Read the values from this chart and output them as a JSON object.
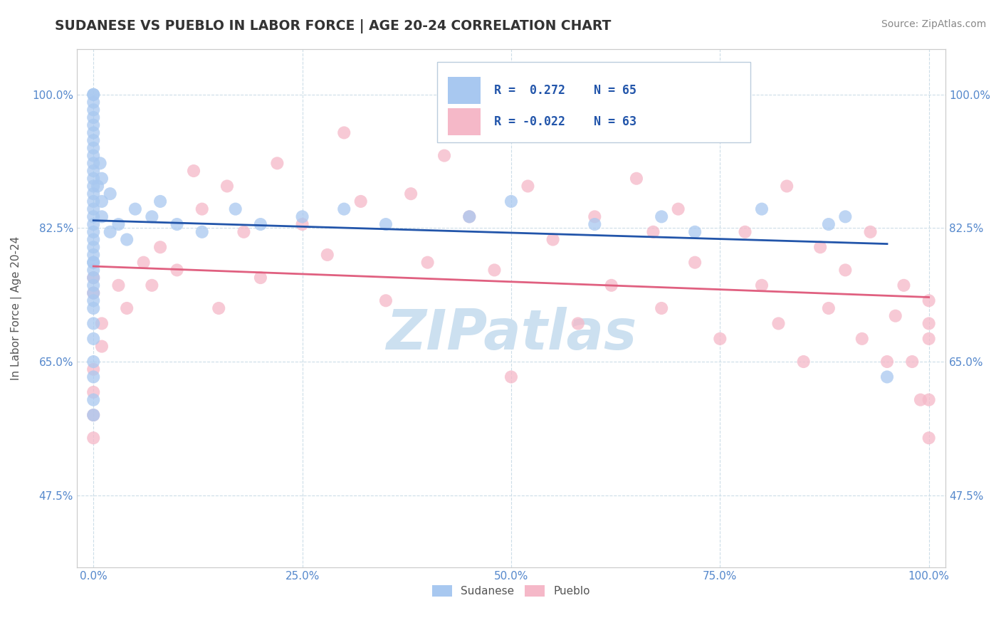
{
  "title": "SUDANESE VS PUEBLO IN LABOR FORCE | AGE 20-24 CORRELATION CHART",
  "source": "Source: ZipAtlas.com",
  "ylabel": "In Labor Force | Age 20-24",
  "xlim": [
    -0.02,
    1.02
  ],
  "ylim": [
    0.38,
    1.06
  ],
  "xticks": [
    0.0,
    0.25,
    0.5,
    0.75,
    1.0
  ],
  "xtick_labels": [
    "0.0%",
    "25.0%",
    "50.0%",
    "75.0%",
    "100.0%"
  ],
  "ytick_values": [
    0.475,
    0.65,
    0.825,
    1.0
  ],
  "ytick_labels": [
    "47.5%",
    "65.0%",
    "82.5%",
    "100.0%"
  ],
  "legend_blue_label": "Sudanese",
  "legend_pink_label": "Pueblo",
  "r_blue": "0.272",
  "n_blue": "65",
  "r_pink": "-0.022",
  "n_pink": "63",
  "blue_color": "#a8c8f0",
  "pink_color": "#f5b8c8",
  "blue_line_color": "#2255aa",
  "pink_line_color": "#e06080",
  "background_color": "#ffffff",
  "watermark_color": "#cce0f0",
  "title_color": "#333333",
  "axis_label_color": "#555555",
  "tick_color": "#5588cc",
  "grid_color": "#ccdde8",
  "blue_scatter_x": [
    0.0,
    0.0,
    0.0,
    0.0,
    0.0,
    0.0,
    0.0,
    0.0,
    0.0,
    0.0,
    0.0,
    0.0,
    0.0,
    0.0,
    0.0,
    0.0,
    0.0,
    0.0,
    0.0,
    0.0,
    0.0,
    0.0,
    0.0,
    0.0,
    0.0,
    0.0,
    0.0,
    0.0,
    0.0,
    0.0,
    0.0,
    0.0,
    0.0,
    0.0,
    0.0,
    0.0,
    0.0,
    0.005,
    0.008,
    0.01,
    0.01,
    0.01,
    0.02,
    0.02,
    0.03,
    0.04,
    0.05,
    0.07,
    0.08,
    0.1,
    0.13,
    0.17,
    0.2,
    0.25,
    0.3,
    0.35,
    0.45,
    0.5,
    0.6,
    0.68,
    0.72,
    0.8,
    0.88,
    0.9,
    0.95
  ],
  "blue_scatter_y": [
    0.76,
    0.78,
    0.8,
    0.82,
    0.83,
    0.85,
    0.86,
    0.87,
    0.88,
    0.89,
    0.9,
    0.91,
    0.92,
    0.93,
    0.94,
    0.95,
    0.96,
    0.97,
    0.98,
    0.99,
    1.0,
    1.0,
    0.73,
    0.75,
    0.77,
    0.79,
    0.81,
    0.84,
    0.7,
    0.72,
    0.74,
    0.68,
    0.65,
    0.63,
    0.6,
    0.58,
    0.78,
    0.88,
    0.91,
    0.84,
    0.86,
    0.89,
    0.82,
    0.87,
    0.83,
    0.81,
    0.85,
    0.84,
    0.86,
    0.83,
    0.82,
    0.85,
    0.83,
    0.84,
    0.85,
    0.83,
    0.84,
    0.86,
    0.83,
    0.84,
    0.82,
    0.85,
    0.83,
    0.84,
    0.63
  ],
  "pink_scatter_x": [
    0.0,
    0.0,
    0.0,
    0.0,
    0.0,
    0.0,
    0.01,
    0.01,
    0.03,
    0.04,
    0.06,
    0.07,
    0.08,
    0.1,
    0.12,
    0.13,
    0.15,
    0.16,
    0.18,
    0.2,
    0.22,
    0.25,
    0.28,
    0.3,
    0.32,
    0.35,
    0.38,
    0.4,
    0.42,
    0.45,
    0.48,
    0.5,
    0.52,
    0.55,
    0.58,
    0.6,
    0.62,
    0.65,
    0.67,
    0.68,
    0.7,
    0.72,
    0.75,
    0.78,
    0.8,
    0.82,
    0.83,
    0.85,
    0.87,
    0.88,
    0.9,
    0.92,
    0.93,
    0.95,
    0.96,
    0.97,
    0.98,
    0.99,
    1.0,
    1.0,
    1.0,
    1.0,
    1.0
  ],
  "pink_scatter_y": [
    0.76,
    0.64,
    0.61,
    0.58,
    0.55,
    0.74,
    0.7,
    0.67,
    0.75,
    0.72,
    0.78,
    0.75,
    0.8,
    0.77,
    0.9,
    0.85,
    0.72,
    0.88,
    0.82,
    0.76,
    0.91,
    0.83,
    0.79,
    0.95,
    0.86,
    0.73,
    0.87,
    0.78,
    0.92,
    0.84,
    0.77,
    0.63,
    0.88,
    0.81,
    0.7,
    0.84,
    0.75,
    0.89,
    0.82,
    0.72,
    0.85,
    0.78,
    0.68,
    0.82,
    0.75,
    0.7,
    0.88,
    0.65,
    0.8,
    0.72,
    0.77,
    0.68,
    0.82,
    0.65,
    0.71,
    0.75,
    0.65,
    0.6,
    0.55,
    0.7,
    0.73,
    0.68,
    0.6
  ]
}
